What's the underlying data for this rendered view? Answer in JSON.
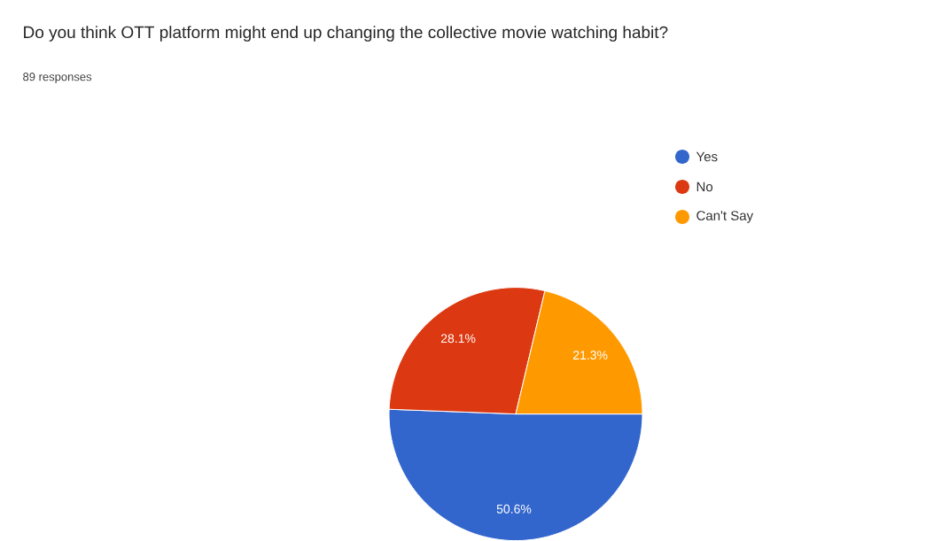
{
  "chart_data": {
    "type": "pie",
    "title": "Do you think OTT platform might end up changing the collective movie watching habit?",
    "subtitle": "89 responses",
    "categories": [
      "Yes",
      "No",
      "Can't Say"
    ],
    "values": [
      50.6,
      28.1,
      21.3
    ],
    "value_labels": [
      "50.6%",
      "28.1%",
      "21.3%"
    ],
    "colors": [
      "#3366cc",
      "#dc3912",
      "#ff9900"
    ],
    "legend": "right"
  }
}
